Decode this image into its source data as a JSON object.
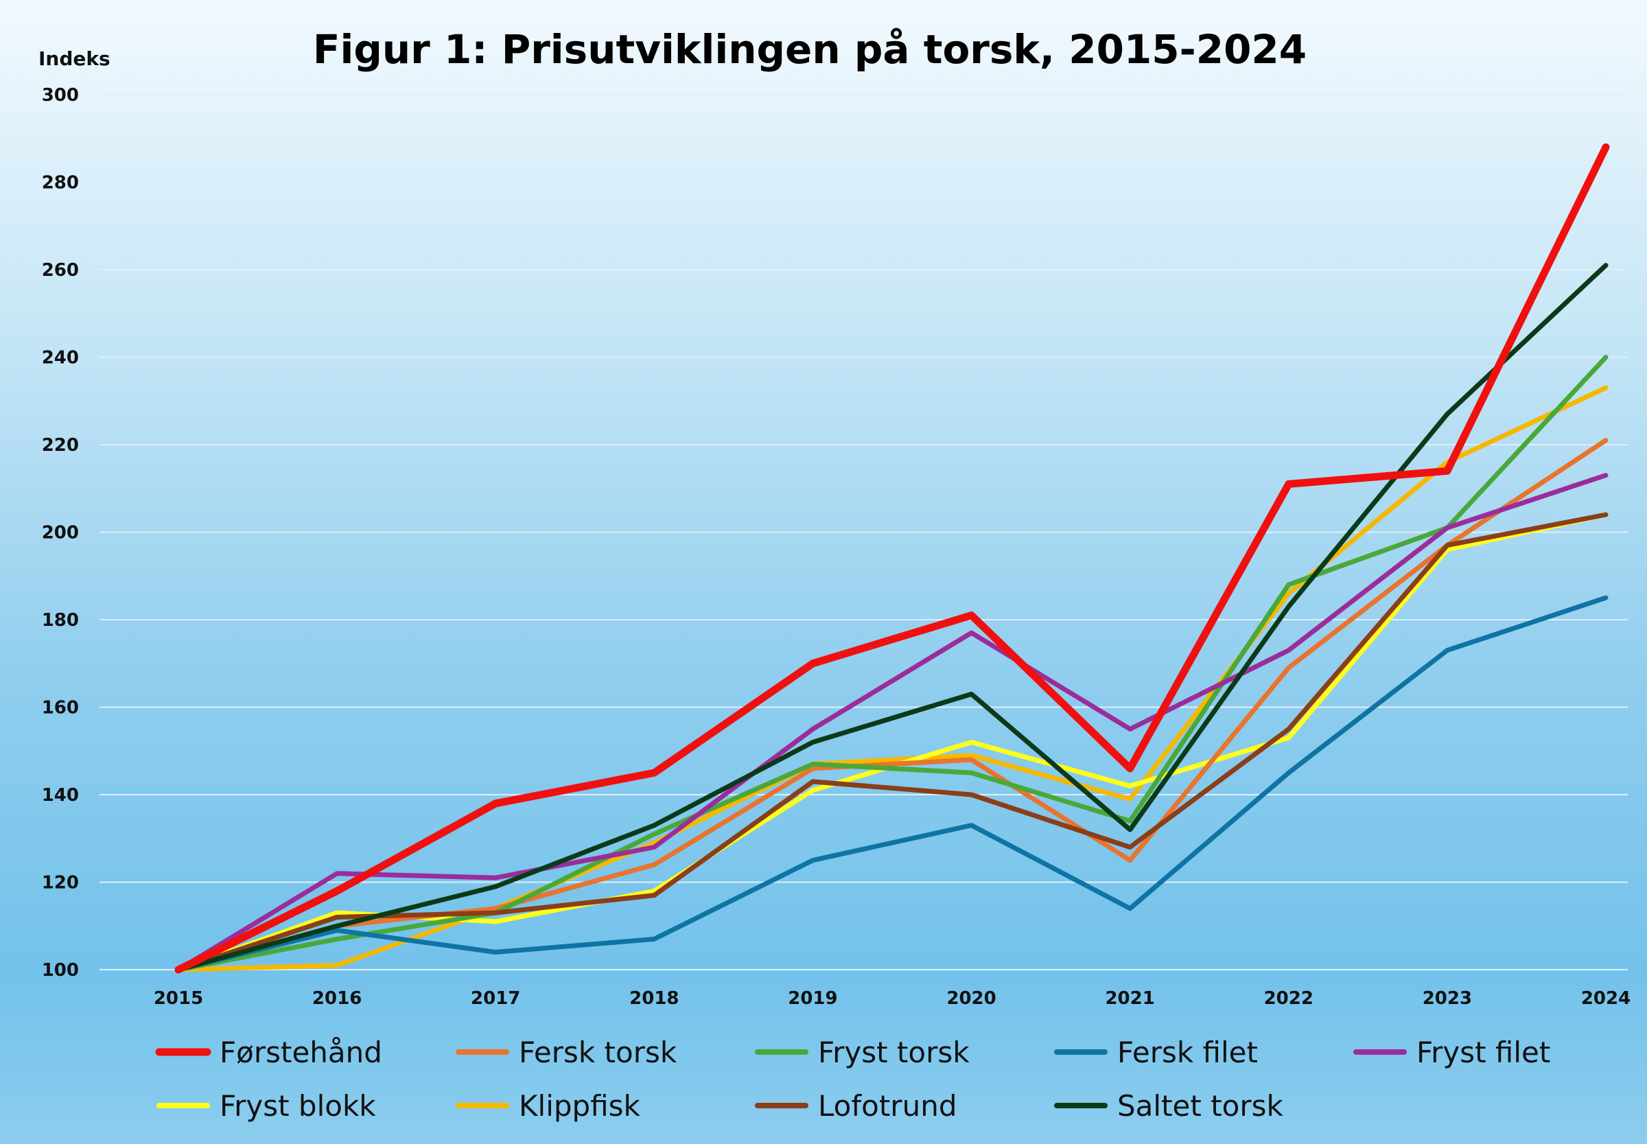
{
  "chart_data": {
    "type": "line",
    "title": "Figur 1: Prisutviklingen på torsk, 2015-2024",
    "ylabel": "Indeks",
    "xlabel": "",
    "categories": [
      "2015",
      "2016",
      "2017",
      "2018",
      "2019",
      "2020",
      "2021",
      "2022",
      "2023",
      "2024"
    ],
    "ylim": [
      100,
      300
    ],
    "yticks": [
      100,
      120,
      140,
      160,
      180,
      200,
      220,
      240,
      260,
      280,
      300
    ],
    "grid": true,
    "legend_position": "bottom",
    "series": [
      {
        "name": "Klippfisk",
        "color": "#f5b800",
        "emphasis": false,
        "values": [
          100,
          101,
          114,
          129,
          147,
          149,
          139,
          186,
          216,
          233
        ]
      },
      {
        "name": "Fryst blokk",
        "color": "#ffff1a",
        "emphasis": false,
        "values": [
          100,
          113,
          111,
          118,
          141,
          152,
          142,
          153,
          196,
          204
        ]
      },
      {
        "name": "Fersk torsk",
        "color": "#e8742e",
        "emphasis": false,
        "values": [
          100,
          110,
          114,
          124,
          146,
          148,
          125,
          169,
          197,
          221
        ]
      },
      {
        "name": "Fryst torsk",
        "color": "#4aa83a",
        "emphasis": false,
        "values": [
          100,
          107,
          113,
          131,
          147,
          145,
          134,
          188,
          201,
          240
        ]
      },
      {
        "name": "Lofotrund",
        "color": "#8b3e18",
        "emphasis": false,
        "values": [
          100,
          112,
          113,
          117,
          143,
          140,
          128,
          155,
          197,
          204
        ]
      },
      {
        "name": "Fersk filet",
        "color": "#0e74a3",
        "emphasis": false,
        "values": [
          100,
          109,
          104,
          107,
          125,
          133,
          114,
          145,
          173,
          185
        ]
      },
      {
        "name": "Fryst filet",
        "color": "#9b2d9b",
        "emphasis": false,
        "values": [
          100,
          122,
          121,
          128,
          155,
          177,
          155,
          173,
          201,
          213
        ]
      },
      {
        "name": "Saltet torsk",
        "color": "#0b3a18",
        "emphasis": false,
        "values": [
          100,
          110,
          119,
          133,
          152,
          163,
          132,
          183,
          227,
          261
        ]
      },
      {
        "name": "Førstehånd",
        "color": "#f01010",
        "emphasis": true,
        "values": [
          100,
          118,
          138,
          145,
          170,
          181,
          146,
          211,
          214,
          288
        ]
      }
    ],
    "legend": [
      [
        "Førstehånd",
        "Fersk torsk",
        "Fryst torsk",
        "Fersk filet",
        "Fryst filet"
      ],
      [
        "Fryst blokk",
        "Klippfisk",
        "Lofotrund",
        "Saltet torsk"
      ]
    ]
  }
}
